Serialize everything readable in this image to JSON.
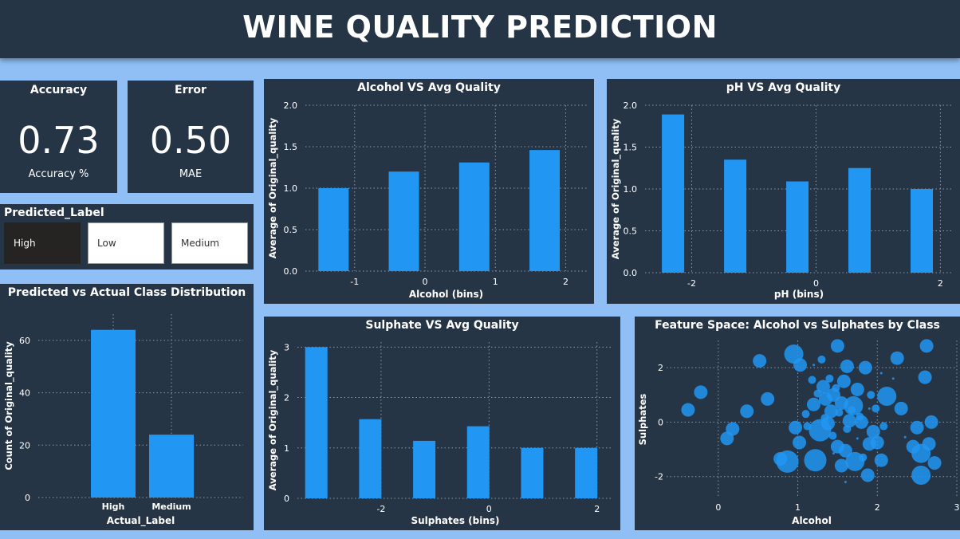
{
  "header": {
    "title": "WINE QUALITY PREDICTION"
  },
  "colors": {
    "bar": "#2196f3",
    "panel": "#263546",
    "background": "#8fbff5",
    "grid": "#8899aa",
    "slicer_selected": "#252423"
  },
  "kpis": {
    "accuracy": {
      "title": "Accuracy",
      "value": "0.73",
      "label": "Accuracy %"
    },
    "error": {
      "title": "Error",
      "value": "0.50",
      "label": "MAE"
    }
  },
  "slicer": {
    "title": "Predicted_Label",
    "options": [
      {
        "label": "High",
        "selected": true
      },
      {
        "label": "Low",
        "selected": false
      },
      {
        "label": "Medium",
        "selected": false
      }
    ]
  },
  "chart_data": [
    {
      "id": "class_dist",
      "type": "bar",
      "title": "Predicted vs Actual Class Distribution",
      "xlabel": "Actual_Label",
      "ylabel": "Count of Original_quality",
      "categories": [
        "High",
        "Medium"
      ],
      "values": [
        64,
        24
      ],
      "ylim": [
        0,
        70
      ],
      "yticks": [
        0,
        20,
        40,
        60
      ],
      "grid": true
    },
    {
      "id": "alcohol",
      "type": "bar",
      "title": "Alcohol VS Avg Quality",
      "xlabel": "Alcohol (bins)",
      "ylabel": "Average of Original_quality",
      "x": [
        -1.3,
        -0.3,
        0.7,
        1.7
      ],
      "values": [
        1.0,
        1.2,
        1.31,
        1.46
      ],
      "xlim": [
        -1.7,
        2.3
      ],
      "xticks": [
        -1,
        0,
        1,
        2
      ],
      "ylim": [
        0,
        2.0
      ],
      "yticks": [
        0.0,
        0.5,
        1.0,
        1.5,
        2.0
      ],
      "yticks_labels": [
        "0.0",
        "0.5",
        "1.0",
        "1.5",
        "2.0"
      ],
      "grid": true
    },
    {
      "id": "ph",
      "type": "bar",
      "title": "pH VS Avg Quality",
      "xlabel": "pH (bins)",
      "ylabel": "Average of Original_quality",
      "x": [
        -2.3,
        -1.3,
        -0.3,
        0.7,
        1.7
      ],
      "values": [
        1.89,
        1.35,
        1.09,
        1.25,
        1.0
      ],
      "xlim": [
        -2.75,
        2.2
      ],
      "xticks": [
        -2,
        0,
        2
      ],
      "ylim": [
        0,
        2.0
      ],
      "yticks": [
        0.0,
        0.5,
        1.0,
        1.5,
        2.0
      ],
      "yticks_labels": [
        "0.0",
        "0.5",
        "1.0",
        "1.5",
        "2.0"
      ],
      "grid": true
    },
    {
      "id": "sulphate",
      "type": "bar",
      "title": "Sulphate VS Avg Quality",
      "xlabel": "Sulphates (bins)",
      "ylabel": "Average of Original_quality",
      "x": [
        -3.2,
        -2.2,
        -1.2,
        -0.2,
        0.8,
        1.8
      ],
      "values": [
        3.0,
        1.57,
        1.14,
        1.43,
        1.0,
        1.0
      ],
      "xlim": [
        -3.55,
        2.3
      ],
      "xticks": [
        -2,
        0,
        2
      ],
      "ylim": [
        0,
        3.1
      ],
      "yticks": [
        0,
        1,
        2,
        3
      ],
      "yticks_labels": [
        "0",
        "1",
        "2",
        "3"
      ],
      "grid": true
    },
    {
      "id": "feature_space",
      "type": "scatter",
      "title": "Feature Space: Alcohol vs Sulphates by Class",
      "xlabel": "Alcohol",
      "ylabel": "Sulphates",
      "xlim": [
        -0.65,
        3.0
      ],
      "xticks": [
        0,
        1,
        2,
        3
      ],
      "ylim": [
        -2.8,
        3.0
      ],
      "yticks": [
        -2,
        0,
        2
      ],
      "grid": true,
      "points": [
        {
          "x": -0.38,
          "y": 0.45,
          "s": 3
        },
        {
          "x": -0.22,
          "y": 1.1,
          "s": 3
        },
        {
          "x": 0.11,
          "y": -0.6,
          "s": 3
        },
        {
          "x": 0.18,
          "y": -0.25,
          "s": 3
        },
        {
          "x": 0.36,
          "y": 0.4,
          "s": 3
        },
        {
          "x": 0.52,
          "y": 2.25,
          "s": 3
        },
        {
          "x": 0.62,
          "y": 0.85,
          "s": 3
        },
        {
          "x": 0.78,
          "y": -1.35,
          "s": 3
        },
        {
          "x": 0.87,
          "y": -1.45,
          "s": 5
        },
        {
          "x": 0.95,
          "y": 2.5,
          "s": 4
        },
        {
          "x": 1.03,
          "y": 2.1,
          "s": 3
        },
        {
          "x": 0.97,
          "y": -0.2,
          "s": 3
        },
        {
          "x": 1.02,
          "y": -0.75,
          "s": 3
        },
        {
          "x": 1.1,
          "y": 0.3,
          "s": 2
        },
        {
          "x": 1.2,
          "y": 0.65,
          "s": 3
        },
        {
          "x": 1.22,
          "y": -1.4,
          "s": 5
        },
        {
          "x": 1.28,
          "y": -0.3,
          "s": 5
        },
        {
          "x": 1.32,
          "y": 1.3,
          "s": 3
        },
        {
          "x": 1.35,
          "y": 0.85,
          "s": 3
        },
        {
          "x": 1.38,
          "y": -0.05,
          "s": 3
        },
        {
          "x": 1.42,
          "y": 0.4,
          "s": 3
        },
        {
          "x": 1.45,
          "y": 1.0,
          "s": 3
        },
        {
          "x": 1.5,
          "y": -0.9,
          "s": 3
        },
        {
          "x": 1.55,
          "y": 0.7,
          "s": 3
        },
        {
          "x": 1.58,
          "y": 1.5,
          "s": 3
        },
        {
          "x": 1.6,
          "y": -1.05,
          "s": 3
        },
        {
          "x": 1.55,
          "y": -1.6,
          "s": 3
        },
        {
          "x": 1.62,
          "y": 2.05,
          "s": 3
        },
        {
          "x": 1.65,
          "y": 0.05,
          "s": 3
        },
        {
          "x": 1.7,
          "y": 0.6,
          "s": 4
        },
        {
          "x": 1.72,
          "y": -1.45,
          "s": 4
        },
        {
          "x": 1.75,
          "y": 1.2,
          "s": 3
        },
        {
          "x": 1.8,
          "y": 0.0,
          "s": 3
        },
        {
          "x": 1.85,
          "y": 2.0,
          "s": 3
        },
        {
          "x": 1.88,
          "y": -1.95,
          "s": 3
        },
        {
          "x": 1.9,
          "y": -0.8,
          "s": 3
        },
        {
          "x": 1.95,
          "y": -0.35,
          "s": 3
        },
        {
          "x": 2.0,
          "y": -0.75,
          "s": 3
        },
        {
          "x": 2.05,
          "y": -1.4,
          "s": 3
        },
        {
          "x": 2.12,
          "y": 0.95,
          "s": 4
        },
        {
          "x": 2.25,
          "y": 2.35,
          "s": 3
        },
        {
          "x": 2.3,
          "y": 0.5,
          "s": 3
        },
        {
          "x": 2.45,
          "y": -0.9,
          "s": 3
        },
        {
          "x": 2.5,
          "y": -0.2,
          "s": 3
        },
        {
          "x": 2.55,
          "y": -1.15,
          "s": 4
        },
        {
          "x": 2.55,
          "y": -1.95,
          "s": 4
        },
        {
          "x": 2.65,
          "y": -0.8,
          "s": 3
        },
        {
          "x": 2.72,
          "y": -1.5,
          "s": 3
        },
        {
          "x": 2.68,
          "y": 0.0,
          "s": 3
        },
        {
          "x": 2.6,
          "y": 1.65,
          "s": 3
        },
        {
          "x": 2.62,
          "y": 2.8,
          "s": 3
        },
        {
          "x": 1.5,
          "y": 2.8,
          "s": 3
        },
        {
          "x": 1.18,
          "y": 1.55,
          "s": 2
        },
        {
          "x": 1.3,
          "y": 2.3,
          "s": 2
        },
        {
          "x": 1.52,
          "y": 0.35,
          "s": 2
        },
        {
          "x": 1.68,
          "y": 0.45,
          "s": 2
        },
        {
          "x": 1.78,
          "y": 0.2,
          "s": 2
        },
        {
          "x": 1.34,
          "y": 0.15,
          "s": 2
        },
        {
          "x": 1.44,
          "y": -0.5,
          "s": 2
        },
        {
          "x": 1.12,
          "y": -0.15,
          "s": 2
        },
        {
          "x": 1.92,
          "y": 1.0,
          "s": 2
        },
        {
          "x": 1.98,
          "y": 0.5,
          "s": 2
        },
        {
          "x": 2.08,
          "y": -0.15,
          "s": 2
        },
        {
          "x": 1.82,
          "y": -1.3,
          "s": 2
        },
        {
          "x": 1.62,
          "y": -0.25,
          "s": 2
        },
        {
          "x": 1.4,
          "y": 1.6,
          "s": 2
        },
        {
          "x": 1.25,
          "y": 1.05,
          "s": 2
        },
        {
          "x": 1.48,
          "y": 1.25,
          "s": 2
        },
        {
          "x": 1.6,
          "y": -2.2,
          "s": 1
        },
        {
          "x": 1.2,
          "y": 2.1,
          "s": 1
        },
        {
          "x": 2.05,
          "y": 1.8,
          "s": 1
        },
        {
          "x": 1.75,
          "y": -0.6,
          "s": 1
        },
        {
          "x": 2.2,
          "y": 1.6,
          "s": 1
        },
        {
          "x": 1.45,
          "y": -1.15,
          "s": 1
        },
        {
          "x": 1.9,
          "y": 0.5,
          "s": 1
        },
        {
          "x": 2.35,
          "y": -0.55,
          "s": 1
        }
      ]
    }
  ]
}
